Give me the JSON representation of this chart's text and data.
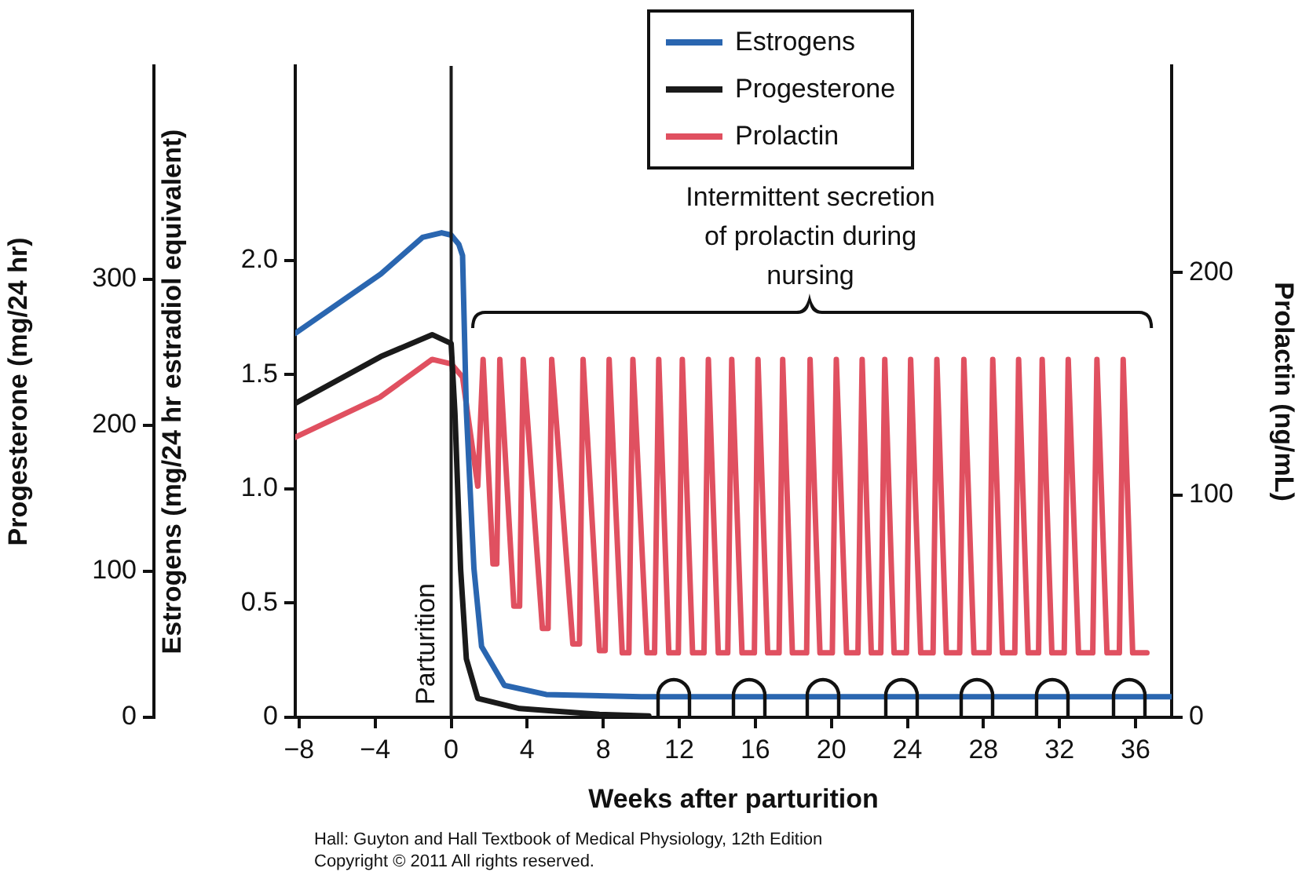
{
  "chart_data": {
    "type": "line",
    "xlabel": "Weeks after parturition",
    "ylabel": "Progesterone (mg/24 hr)",
    "y3label": "Estrogens (mg/24 hr estradiol equivalent)",
    "y2label": "Prolactin (ng/mL)",
    "xlim": [
      -8.2,
      37.9
    ],
    "xticks": [
      {
        "value": -8,
        "label": "−8"
      },
      {
        "value": -4,
        "label": "−4"
      },
      0,
      4,
      8,
      12,
      16,
      20,
      24,
      28,
      32,
      36
    ],
    "ylim": [
      0,
      446
    ],
    "yticks": [
      0,
      100,
      200,
      300
    ],
    "y3lim": [
      0,
      2.85
    ],
    "y3ticks": [
      0,
      0.5,
      {
        "value": 1,
        "label": "1.0"
      },
      1.5,
      {
        "value": 2,
        "label": "2.0"
      }
    ],
    "y2lim": [
      0,
      293
    ],
    "y2ticks": [
      0,
      100,
      200
    ],
    "grid": false,
    "legend": "top",
    "marker": "none",
    "line_style": "solid",
    "series": [
      {
        "name": "Estrogens",
        "color": "#2a66b0",
        "axis": "y3",
        "x": [
          -8.2,
          -3.7,
          -1.5,
          -0.5,
          0,
          0.4,
          0.6,
          0.8,
          1.2,
          1.6,
          2.8,
          5,
          10,
          20,
          30,
          37.9
        ],
        "values": [
          1.68,
          1.94,
          2.1,
          2.12,
          2.11,
          2.07,
          2.02,
          1.34,
          0.65,
          0.31,
          0.14,
          0.1,
          0.09,
          0.09,
          0.09,
          0.09
        ]
      },
      {
        "name": "Progesterone",
        "color": "#1a1a1a",
        "axis": "y",
        "x": [
          -8.2,
          -3.7,
          -1,
          0,
          0.2,
          0.5,
          0.8,
          1.4,
          3.6,
          7.8,
          10.4
        ],
        "values": [
          215,
          247,
          262,
          256,
          208,
          101,
          40,
          13,
          6,
          2,
          1
        ]
      },
      {
        "name": "Prolactin",
        "color": "#e05060",
        "axis": "y2",
        "x": [
          -8.2,
          -3.75,
          -1,
          0,
          0.6,
          1.4,
          1.68,
          2.2,
          2.4,
          2.56,
          3.3,
          3.6,
          3.79,
          4.8,
          5.1,
          5.29,
          6.4,
          6.75,
          6.94,
          7.8,
          8.1,
          8.31,
          9.0,
          9.35,
          9.56,
          10.3,
          10.7,
          10.92,
          11.45,
          11.95,
          12.16,
          12.7,
          13.3,
          13.53,
          14.05,
          14.55,
          14.76,
          15.3,
          15.95,
          16.14,
          16.65,
          17.25,
          17.44,
          17.95,
          18.7,
          18.88,
          19.4,
          20.05,
          20.26,
          20.8,
          21.4,
          21.62,
          22.1,
          22.6,
          22.81,
          23.3,
          23.95,
          24.17,
          24.7,
          25.35,
          25.55,
          26.05,
          26.75,
          26.97,
          27.5,
          28.3,
          28.49,
          29.0,
          29.65,
          29.85,
          30.35,
          30.9,
          31.09,
          31.6,
          32.25,
          32.46,
          33.0,
          33.75,
          33.97,
          34.5,
          35.15,
          35.35,
          35.85,
          36.6
        ],
        "values": [
          126,
          144,
          161,
          159,
          153,
          104,
          161,
          69,
          69,
          161,
          50,
          50,
          161,
          40,
          40,
          161,
          33,
          33,
          161,
          30,
          30,
          161,
          29,
          29,
          161,
          29,
          29,
          161,
          29,
          29,
          161,
          29,
          29,
          161,
          29,
          29,
          161,
          29,
          29,
          161,
          29,
          29,
          161,
          29,
          29,
          161,
          29,
          29,
          161,
          29,
          29,
          161,
          29,
          29,
          161,
          29,
          29,
          161,
          29,
          29,
          161,
          29,
          29,
          161,
          29,
          29,
          161,
          29,
          29,
          161,
          29,
          29,
          161,
          29,
          29,
          161,
          29,
          29,
          161,
          29,
          29,
          161,
          29,
          29
        ]
      }
    ],
    "ref_lines": [
      {
        "axis": "x",
        "value": 0,
        "label": "Parturition",
        "color": "#1a1a1a"
      }
    ],
    "annotations": [
      "Intermittent secretion of prolactin during nursing",
      "Hall: Guyton and Hall Textbook of Medical Physiology, 12th Edition",
      "Copyright © 2011 All rights reserved."
    ]
  }
}
